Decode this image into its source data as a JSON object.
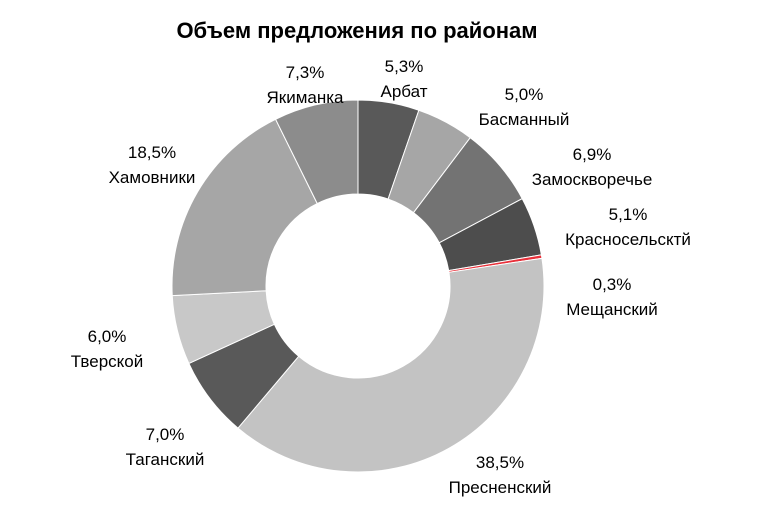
{
  "chart_data": {
    "type": "pie",
    "title": "Объем предложения по районам",
    "donut": true,
    "start_angle_deg": 0,
    "direction": "clockwise",
    "categories": [
      "Арбат",
      "Басманный",
      "Замоскворечье",
      "Красносельсктй",
      "Мещанский",
      "Пресненский",
      "Таганский",
      "Тверской",
      "Хамовники",
      "Якиманка"
    ],
    "values": [
      5.3,
      5.0,
      6.9,
      5.1,
      0.3,
      38.5,
      7.0,
      6.0,
      18.5,
      7.3
    ],
    "value_labels": [
      "5,3%",
      "5,0%",
      "6,9%",
      "5,1%",
      "0,3%",
      "38,5%",
      "7,0%",
      "6,0%",
      "18,5%",
      "7,3%"
    ],
    "colors": [
      "#595959",
      "#a6a6a6",
      "#737373",
      "#4d4d4d",
      "#e8303a",
      "#c3c3c3",
      "#595959",
      "#c8c8c8",
      "#a6a6a6",
      "#8c8c8c"
    ],
    "legend": "none"
  }
}
